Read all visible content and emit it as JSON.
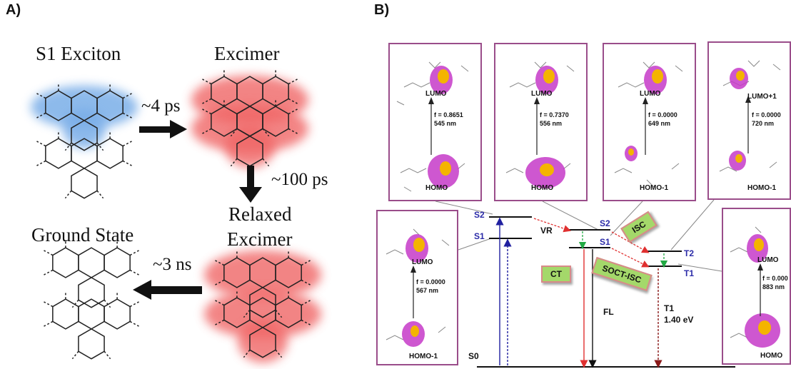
{
  "panel_a": {
    "label": "A)",
    "states": {
      "s1_exciton": "S1 Exciton",
      "excimer": "Excimer",
      "relaxed_1": "Relaxed",
      "relaxed_2": "Excimer",
      "ground": "Ground State"
    },
    "times": {
      "t1": "~4 ps",
      "t2": "~100 ps",
      "t3": "~3 ns"
    },
    "colors": {
      "exciton_glow": "#7aaee8",
      "excimer_glow": "#f06666"
    }
  },
  "panel_b": {
    "label": "B)",
    "orbital_boxes": [
      {
        "upper": "LUMO",
        "lower": "HOMO",
        "f": "f = 0.8651",
        "nm": "545 nm"
      },
      {
        "upper": "LUMO",
        "lower": "HOMO",
        "f": "f = 0.7370",
        "nm": "556 nm"
      },
      {
        "upper": "LUMO",
        "lower": "HOMO-1",
        "f": "f = 0.0000",
        "nm": "649 nm"
      },
      {
        "upper": "LUMO+1",
        "lower": "HOMO-1",
        "f": "f = 0.0000",
        "nm": "720 nm"
      },
      {
        "upper": "LUMO",
        "lower": "HOMO-1",
        "f": "f = 0.0000",
        "nm": "567 nm"
      },
      {
        "upper": "LUMO",
        "lower": "HOMO",
        "f": "f = 0.000",
        "nm": "883 nm"
      }
    ],
    "levels": {
      "s2_left": "S2",
      "s1_left": "S1",
      "s2_mid": "S2",
      "s1_mid": "S1",
      "t2": "T2",
      "t1": "T1",
      "s0": "S0"
    },
    "labels": {
      "vr": "VR",
      "fl": "FL",
      "t1_energy_1": "T1",
      "t1_energy_2": "1.40 eV"
    },
    "process_boxes": {
      "isc": "ISC",
      "ct": "CT",
      "soct_isc": "SOCT-ISC"
    },
    "colors": {
      "box_border": "#9a4d8a",
      "process_fill": "#a4d86a",
      "level_text": "#2b2ba8"
    }
  }
}
